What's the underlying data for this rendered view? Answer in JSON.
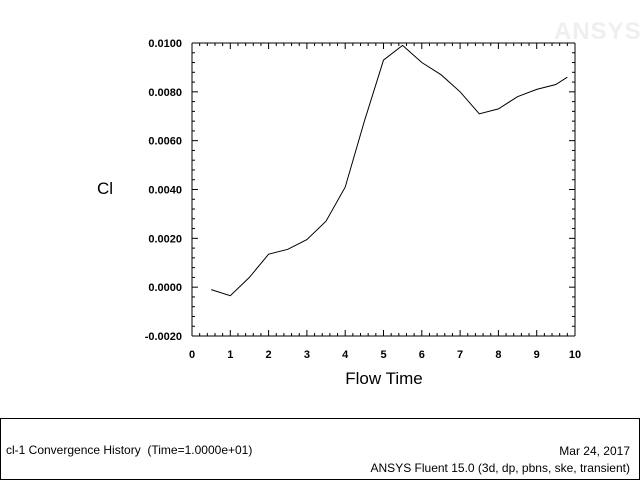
{
  "logo_text": "ANSYS",
  "chart_data": {
    "type": "line",
    "xlabel": "Flow Time",
    "ylabel": "Cl",
    "xlim": [
      0,
      10
    ],
    "ylim": [
      -0.002,
      0.01
    ],
    "xticks": [
      "0",
      "1",
      "2",
      "3",
      "4",
      "5",
      "6",
      "7",
      "8",
      "9",
      "10"
    ],
    "yticks": [
      "-0.0020",
      "0.0000",
      "0.0020",
      "0.0040",
      "0.0060",
      "0.0080",
      "0.0100"
    ],
    "series": [
      {
        "x": [
          0.5,
          1.0,
          1.5,
          2.0,
          2.5,
          3.0,
          3.5,
          4.0,
          4.5,
          5.0,
          5.5,
          6.0,
          6.5,
          7.0,
          7.5,
          8.0,
          8.5,
          9.0,
          9.5,
          9.8
        ],
        "y": [
          -0.0001,
          -0.00035,
          0.0004,
          0.00135,
          0.00155,
          0.00195,
          0.0027,
          0.0041,
          0.0068,
          0.0093,
          0.0099,
          0.0092,
          0.0087,
          0.008,
          0.0071,
          0.0073,
          0.0078,
          0.0081,
          0.0083,
          0.0086
        ]
      }
    ],
    "grid": false
  },
  "footer": {
    "left": "cl-1 Convergence History  (Time=1.0000e+01)",
    "date": "Mar 24, 2017",
    "solver": "ANSYS Fluent 15.0 (3d, dp, pbns, ske, transient)"
  }
}
